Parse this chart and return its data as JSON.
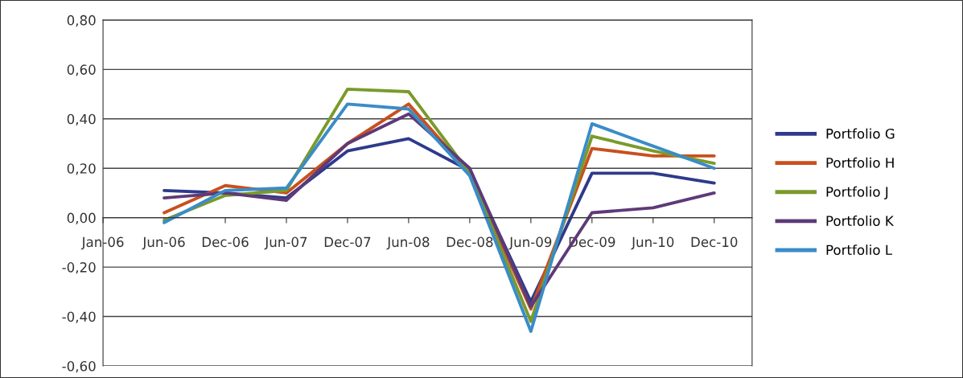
{
  "chart_data": {
    "type": "line",
    "categories": [
      "Jan-06",
      "Jun-06",
      "Dec-06",
      "Jun-07",
      "Dec-07",
      "Jun-08",
      "Dec-08",
      "Jun-09",
      "Dec-09",
      "Jun-10",
      "Dec-10"
    ],
    "series": [
      {
        "name": "Portfolio G",
        "color": "#2e3a8c",
        "values": [
          null,
          0.11,
          0.1,
          0.08,
          0.27,
          0.32,
          0.19,
          -0.34,
          0.18,
          0.18,
          0.14
        ]
      },
      {
        "name": "Portfolio H",
        "color": "#c8501e",
        "values": [
          null,
          0.02,
          0.13,
          0.1,
          0.3,
          0.46,
          0.18,
          -0.37,
          0.28,
          0.25,
          0.25
        ]
      },
      {
        "name": "Portfolio J",
        "color": "#7a9a2a",
        "values": [
          null,
          -0.01,
          0.09,
          0.11,
          0.52,
          0.51,
          0.18,
          -0.42,
          0.33,
          0.27,
          0.22
        ]
      },
      {
        "name": "Portfolio K",
        "color": "#5e3a78",
        "values": [
          null,
          0.08,
          0.1,
          0.07,
          0.3,
          0.42,
          0.2,
          -0.36,
          0.02,
          0.04,
          0.1
        ]
      },
      {
        "name": "Portfolio L",
        "color": "#3a8cc8",
        "values": [
          null,
          -0.02,
          0.11,
          0.12,
          0.46,
          0.44,
          0.17,
          -0.46,
          0.38,
          0.29,
          0.2
        ]
      }
    ],
    "ylim": [
      -0.6,
      0.8
    ],
    "yticks": [
      {
        "value": -0.6,
        "label": "-0,60"
      },
      {
        "value": -0.4,
        "label": "-0,40"
      },
      {
        "value": -0.2,
        "label": "-0,20"
      },
      {
        "value": 0,
        "label": "0,00"
      },
      {
        "value": 0.2,
        "label": "0,20"
      },
      {
        "value": 0.4,
        "label": "0,40"
      },
      {
        "value": 0.6,
        "label": "0,60"
      },
      {
        "value": 0.8,
        "label": "0,80"
      }
    ],
    "grid": "y",
    "legend": "right",
    "marker": "none",
    "line_style": "solid"
  }
}
